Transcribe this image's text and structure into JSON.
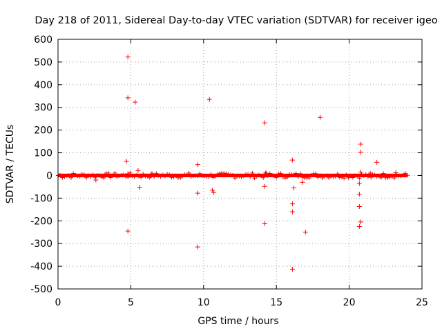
{
  "chart_data": {
    "type": "scatter",
    "title": "Day 218 of 2011, Sidereal Day-to-day VTEC variation (SDTVAR) for receiver igeo",
    "xlabel": "GPS time / hours",
    "ylabel": "SDTVAR / TECUs",
    "xlim": [
      0,
      25
    ],
    "ylim": [
      -500,
      600
    ],
    "xticks": [
      0,
      5,
      10,
      15,
      20,
      25
    ],
    "yticks": [
      -500,
      -400,
      -300,
      -200,
      -100,
      0,
      100,
      200,
      300,
      400,
      500,
      600
    ],
    "grid": true,
    "marker": "+",
    "series": [
      {
        "name": "SDTVAR",
        "color": "#ff0000",
        "baseline": {
          "x_range": [
            0,
            24
          ],
          "y_range": [
            -8,
            8
          ],
          "note": "dense band of points around zero"
        },
        "points": [
          {
            "x": 4.8,
            "y": 522
          },
          {
            "x": 4.8,
            "y": 342
          },
          {
            "x": 5.3,
            "y": 323
          },
          {
            "x": 4.7,
            "y": 62
          },
          {
            "x": 5.5,
            "y": 22
          },
          {
            "x": 4.8,
            "y": 8
          },
          {
            "x": 5.6,
            "y": -52
          },
          {
            "x": 4.8,
            "y": -245
          },
          {
            "x": 2.6,
            "y": -20
          },
          {
            "x": 9.6,
            "y": 48
          },
          {
            "x": 9.6,
            "y": -78
          },
          {
            "x": 9.6,
            "y": -315
          },
          {
            "x": 10.4,
            "y": 335
          },
          {
            "x": 10.6,
            "y": -65
          },
          {
            "x": 10.7,
            "y": -75
          },
          {
            "x": 14.2,
            "y": 232
          },
          {
            "x": 14.3,
            "y": 10
          },
          {
            "x": 14.2,
            "y": -48
          },
          {
            "x": 14.2,
            "y": -213
          },
          {
            "x": 16.1,
            "y": 68
          },
          {
            "x": 16.2,
            "y": -55
          },
          {
            "x": 16.1,
            "y": -125
          },
          {
            "x": 16.1,
            "y": -160
          },
          {
            "x": 16.1,
            "y": -413
          },
          {
            "x": 16.8,
            "y": -30
          },
          {
            "x": 17.0,
            "y": -250
          },
          {
            "x": 18.0,
            "y": 256
          },
          {
            "x": 20.8,
            "y": 138
          },
          {
            "x": 20.8,
            "y": 102
          },
          {
            "x": 20.8,
            "y": 15
          },
          {
            "x": 20.7,
            "y": -35
          },
          {
            "x": 20.7,
            "y": -82
          },
          {
            "x": 20.7,
            "y": -137
          },
          {
            "x": 20.8,
            "y": -205
          },
          {
            "x": 20.7,
            "y": -225
          },
          {
            "x": 21.9,
            "y": 58
          },
          {
            "x": 23.2,
            "y": 12
          },
          {
            "x": 21.5,
            "y": -8
          }
        ]
      }
    ]
  }
}
